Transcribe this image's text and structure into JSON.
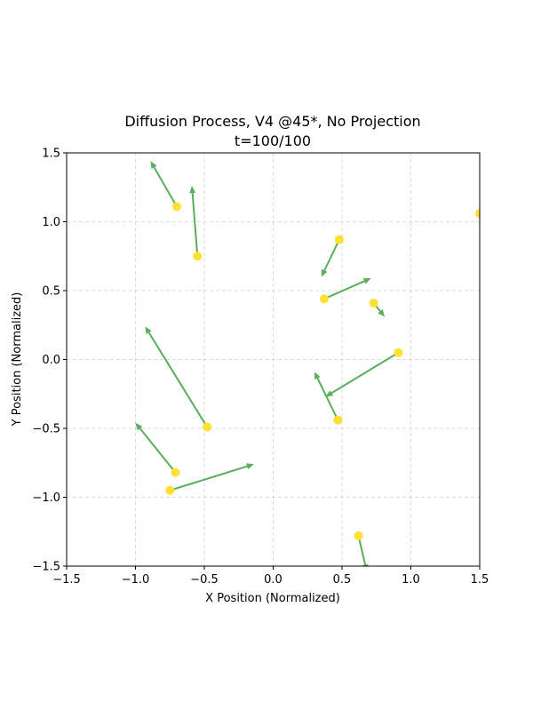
{
  "chart_data": {
    "type": "scatter",
    "title": "Diffusion Process, V4 @45*, No Projection",
    "subtitle": "t=100/100",
    "xlabel": "X Position (Normalized)",
    "ylabel": "Y Position (Normalized)",
    "xlim": [
      -1.5,
      1.5
    ],
    "ylim": [
      -1.5,
      1.5
    ],
    "xticks": [
      -1.5,
      -1.0,
      -0.5,
      0.0,
      0.5,
      1.0,
      1.5
    ],
    "yticks": [
      -1.5,
      -1.0,
      -0.5,
      0.0,
      0.5,
      1.0,
      1.5
    ],
    "xtick_labels": [
      "−1.5",
      "−1.0",
      "−0.5",
      "0.0",
      "0.5",
      "1.0",
      "1.5"
    ],
    "ytick_labels": [
      "−1.5",
      "−1.0",
      "−0.5",
      "0.0",
      "0.5",
      "1.0",
      "1.5"
    ],
    "grid": true,
    "point_color": "#FFE135",
    "arrow_color": "#5BAE5B",
    "points": [
      {
        "x": -0.7,
        "y": 1.11,
        "dx": -0.19,
        "dy": 0.33
      },
      {
        "x": -0.55,
        "y": 0.75,
        "dx": -0.04,
        "dy": 0.51
      },
      {
        "x": 0.48,
        "y": 0.87,
        "dx": -0.13,
        "dy": -0.27
      },
      {
        "x": 0.37,
        "y": 0.44,
        "dx": 0.34,
        "dy": 0.15
      },
      {
        "x": 0.73,
        "y": 0.41,
        "dx": 0.08,
        "dy": -0.1
      },
      {
        "x": 0.91,
        "y": 0.05,
        "dx": -0.53,
        "dy": -0.32
      },
      {
        "x": -0.48,
        "y": -0.49,
        "dx": -0.45,
        "dy": 0.73
      },
      {
        "x": 0.47,
        "y": -0.44,
        "dx": -0.17,
        "dy": 0.35
      },
      {
        "x": -0.71,
        "y": -0.82,
        "dx": -0.29,
        "dy": 0.36
      },
      {
        "x": -0.75,
        "y": -0.95,
        "dx": 0.61,
        "dy": 0.19
      },
      {
        "x": 0.62,
        "y": -1.28,
        "dx": 0.06,
        "dy": -0.26
      },
      {
        "x": 1.5,
        "y": 1.06,
        "dx": 0.0,
        "dy": 0.0
      }
    ]
  }
}
